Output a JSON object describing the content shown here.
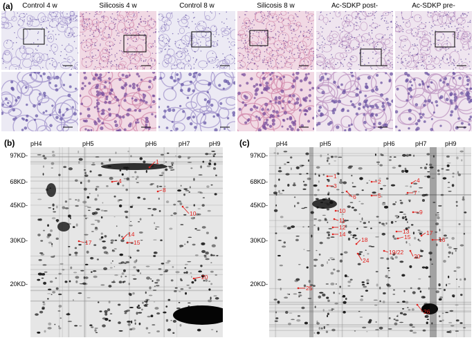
{
  "panel_a": {
    "letter": "(a)",
    "titles": [
      "Control 4 w",
      "Silicosis 4 w",
      "Control 8 w",
      "Silicosis 8 w",
      "Ac-SDKP post-",
      "Ac-SDKP pre-"
    ],
    "tile_styles": [
      "control",
      "silicosis",
      "control",
      "silicosis",
      "treated",
      "treated"
    ]
  },
  "panel_b": {
    "letter": "(b)",
    "ph_labels": [
      "pH4",
      "pH5",
      "pH6",
      "pH7",
      "pH9"
    ],
    "kd_labels": [
      "97KD-",
      "68KD-",
      "45KD-",
      "30KD-",
      "20KD-"
    ],
    "spots": [
      "1",
      "4",
      "8",
      "10",
      "17",
      "14",
      "15",
      "20"
    ]
  },
  "panel_c": {
    "letter": "(c)",
    "ph_labels": [
      "pH4",
      "pH5",
      "pH6",
      "pH7",
      "pH9"
    ],
    "kd_labels": [
      "97KD-",
      "68KD-",
      "45KD-",
      "30KD-",
      "20KD-"
    ],
    "spots": [
      "1",
      "2",
      "3",
      "4",
      "5",
      "6",
      "7",
      "9",
      "10",
      "11",
      "12",
      "14",
      "18",
      "13",
      "15",
      "17",
      "16",
      "19/22",
      "20",
      "24",
      "25",
      "26"
    ]
  },
  "colors": {
    "annotation": "#e0201c",
    "he_pink": "#d9a0b8",
    "he_purple": "#5b4c9c"
  }
}
